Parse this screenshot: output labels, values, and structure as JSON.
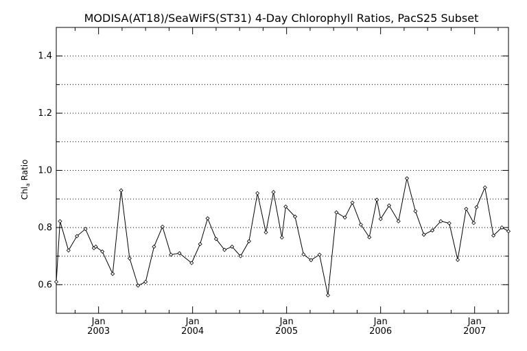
{
  "chart_data": {
    "type": "line",
    "title": "MODISA(AT18)/SeaWiFS(ST31) 4-Day Chlorophyll Ratios, PacS25 Subset",
    "ylabel": "Chl",
    "ylabel_sub": "a",
    "ylabel_rest": " Ratio",
    "xlabel": "",
    "ylim": [
      0.5,
      1.5
    ],
    "xlim": [
      2002.55,
      2007.36
    ],
    "yticks": [
      {
        "value": 0.6,
        "label": "0.6"
      },
      {
        "value": 0.8,
        "label": "0.8"
      },
      {
        "value": 1.0,
        "label": "1.0"
      },
      {
        "value": 1.2,
        "label": "1.2"
      },
      {
        "value": 1.4,
        "label": "1.4"
      }
    ],
    "ygrid": [
      0.6,
      0.7,
      0.8,
      0.9,
      1.0,
      1.1,
      1.2,
      1.3,
      1.4
    ],
    "xticks": [
      {
        "value": 2003.0,
        "month": "Jan",
        "year": "2003"
      },
      {
        "value": 2004.0,
        "month": "Jan",
        "year": "2004"
      },
      {
        "value": 2005.0,
        "month": "Jan",
        "year": "2005"
      },
      {
        "value": 2006.0,
        "month": "Jan",
        "year": "2006"
      },
      {
        "value": 2007.0,
        "month": "Jan",
        "year": "2007"
      }
    ],
    "grid": "horizontal dotted",
    "series": [
      {
        "marker": "diamond",
        "points": [
          [
            2002.55,
            0.61
          ],
          [
            2002.59,
            0.822
          ],
          [
            2002.68,
            0.72
          ],
          [
            2002.77,
            0.77
          ],
          [
            2002.86,
            0.795
          ],
          [
            2002.95,
            0.728
          ],
          [
            2002.97,
            0.733
          ],
          [
            2003.04,
            0.716
          ],
          [
            2003.15,
            0.638
          ],
          [
            2003.24,
            0.93
          ],
          [
            2003.33,
            0.692
          ],
          [
            2003.42,
            0.597
          ],
          [
            2003.5,
            0.61
          ],
          [
            2003.59,
            0.733
          ],
          [
            2003.68,
            0.803
          ],
          [
            2003.77,
            0.705
          ],
          [
            2003.86,
            0.71
          ],
          [
            2003.99,
            0.676
          ],
          [
            2004.08,
            0.742
          ],
          [
            2004.16,
            0.832
          ],
          [
            2004.25,
            0.76
          ],
          [
            2004.34,
            0.722
          ],
          [
            2004.42,
            0.733
          ],
          [
            2004.51,
            0.7
          ],
          [
            2004.6,
            0.752
          ],
          [
            2004.69,
            0.92
          ],
          [
            2004.78,
            0.783
          ],
          [
            2004.86,
            0.924
          ],
          [
            2004.95,
            0.765
          ],
          [
            2004.99,
            0.873
          ],
          [
            2005.09,
            0.838
          ],
          [
            2005.18,
            0.706
          ],
          [
            2005.26,
            0.686
          ],
          [
            2005.35,
            0.705
          ],
          [
            2005.44,
            0.563
          ],
          [
            2005.53,
            0.853
          ],
          [
            2005.62,
            0.835
          ],
          [
            2005.7,
            0.887
          ],
          [
            2005.79,
            0.81
          ],
          [
            2005.88,
            0.766
          ],
          [
            2005.96,
            0.897
          ],
          [
            2006.0,
            0.83
          ],
          [
            2006.09,
            0.877
          ],
          [
            2006.19,
            0.822
          ],
          [
            2006.28,
            0.972
          ],
          [
            2006.37,
            0.857
          ],
          [
            2006.46,
            0.775
          ],
          [
            2006.55,
            0.79
          ],
          [
            2006.64,
            0.822
          ],
          [
            2006.73,
            0.815
          ],
          [
            2006.82,
            0.687
          ],
          [
            2006.91,
            0.865
          ],
          [
            2006.99,
            0.816
          ],
          [
            2007.02,
            0.871
          ],
          [
            2007.11,
            0.94
          ],
          [
            2007.2,
            0.772
          ],
          [
            2007.29,
            0.8
          ],
          [
            2007.36,
            0.787
          ]
        ]
      }
    ]
  }
}
